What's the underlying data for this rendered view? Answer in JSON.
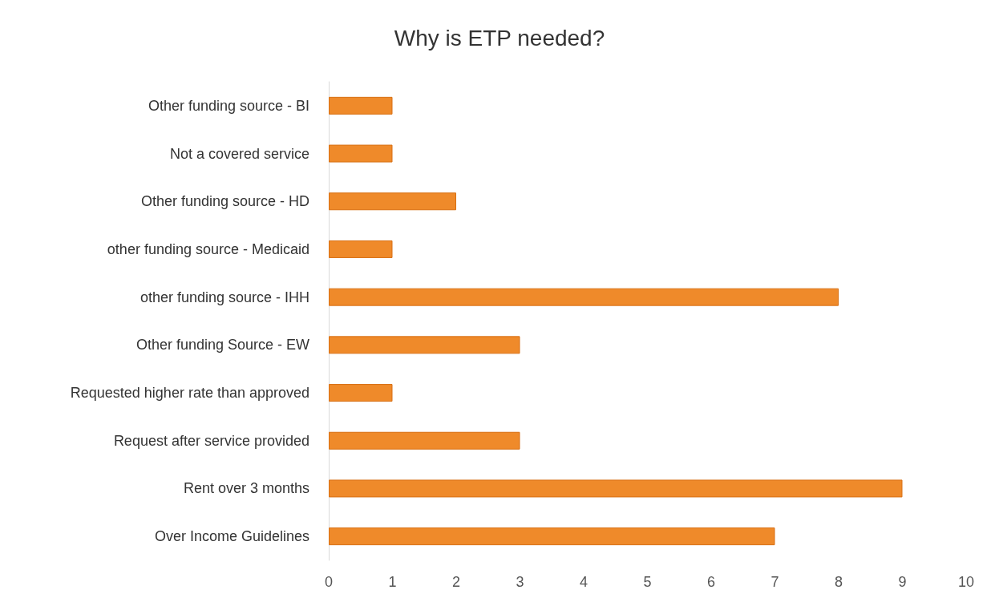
{
  "chart_data": {
    "type": "bar",
    "orientation": "horizontal",
    "title": "Why is ETP needed?",
    "categories": [
      "Other funding source - BI",
      "Not a covered service",
      "Other funding source - HD",
      "other funding source - Medicaid",
      "other funding source - IHH",
      "Other funding Source - EW",
      "Requested higher rate than approved",
      "Request after service provided",
      "Rent over 3 months",
      "Over Income Guidelines"
    ],
    "values": [
      1,
      1,
      2,
      1,
      8,
      3,
      1,
      3,
      9,
      7
    ],
    "color": "#ef8a2a",
    "xlim": [
      0,
      10
    ],
    "xticks": [
      0,
      1,
      2,
      3,
      4,
      5,
      6,
      7,
      8,
      9,
      10
    ],
    "grid": false
  }
}
